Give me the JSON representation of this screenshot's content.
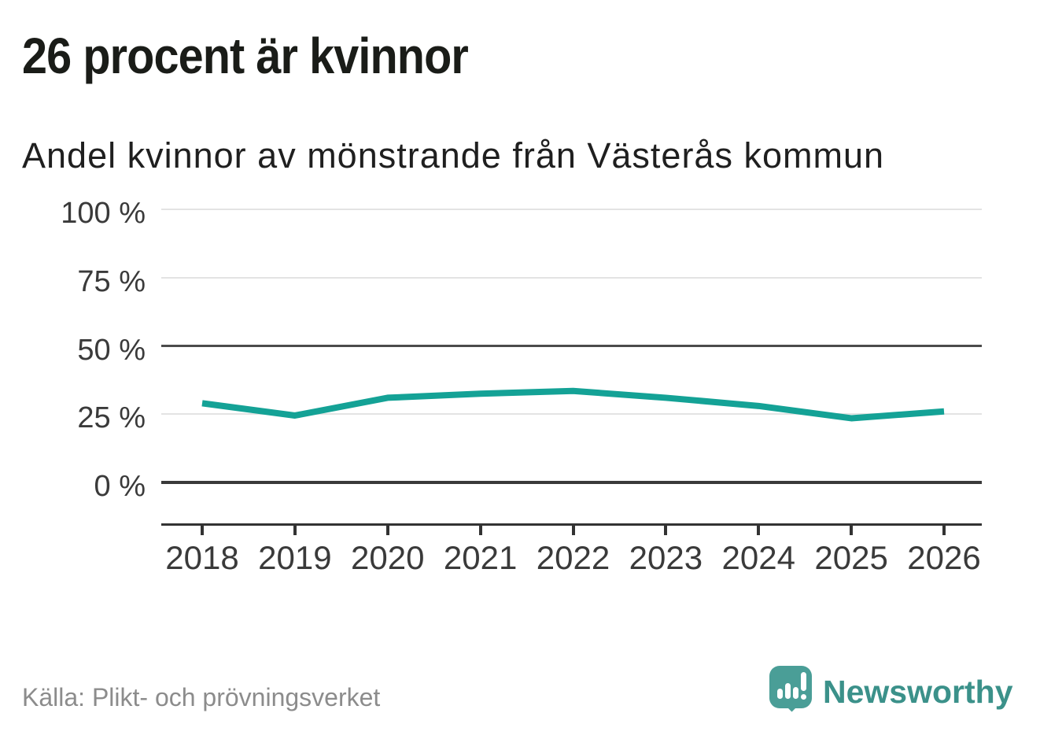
{
  "header": {
    "title": "26 procent är kvinnor",
    "subtitle": "Andel kvinnor av mönstrande från Västerås kommun"
  },
  "footer": {
    "source": "Källa: Plikt- och prövningsverket",
    "brand_name": "Newsworthy",
    "brand_icon": "speech-bubble-bar-chart-icon"
  },
  "colors": {
    "line": "#14a296",
    "brand_icon": "#4a9e97",
    "brand_text": "#3b918a",
    "grid_light": "#e3e3e3",
    "grid_medium": "#4b4b4b",
    "grid_strong": "#3a3a3a",
    "axis": "#333333",
    "label_text": "#3a3a3a",
    "title_text": "#1a1c18",
    "source_text": "#8c8c8c"
  },
  "chart_data": {
    "type": "line",
    "title": "Andel kvinnor av mönstrande från Västerås kommun",
    "x": [
      2018,
      2019,
      2020,
      2021,
      2022,
      2023,
      2024,
      2025,
      2026
    ],
    "series": [
      {
        "name": "Andel kvinnor av mönstrande (%)",
        "color": "#14a296",
        "values": [
          29,
          24.5,
          31,
          32.5,
          33.5,
          31,
          28,
          23.5,
          26
        ]
      }
    ],
    "ylim": [
      0,
      100
    ],
    "yticks": [
      {
        "value": 0,
        "label": "0 %",
        "emphasis": "strong"
      },
      {
        "value": 25,
        "label": "25 %",
        "emphasis": "light"
      },
      {
        "value": 50,
        "label": "50 %",
        "emphasis": "medium"
      },
      {
        "value": 75,
        "label": "75 %",
        "emphasis": "light"
      },
      {
        "value": 100,
        "label": "100 %",
        "emphasis": "light"
      }
    ],
    "xlabel": "",
    "ylabel": "",
    "grid": "horizontal",
    "legend": "none"
  }
}
